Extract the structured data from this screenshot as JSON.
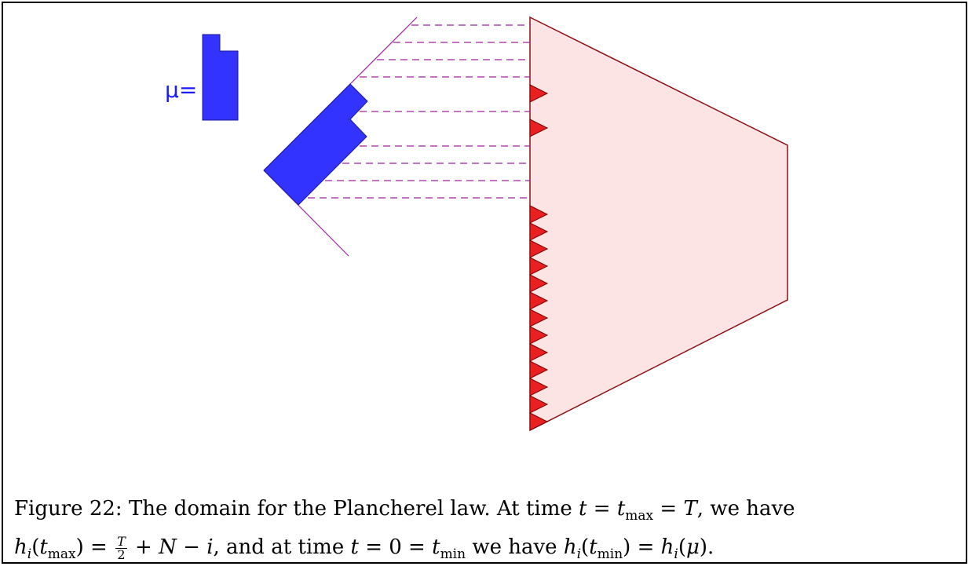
{
  "figure": {
    "mu_label": "μ=",
    "colors": {
      "domain_fill": "#fde4e4",
      "domain_stroke": "#8b1010",
      "triangle": "#e82020",
      "young_diagram": "#3333ff",
      "guide_lines": "#a020a0"
    }
  },
  "caption": {
    "figure_label": "Figure 22:",
    "text_1": "The domain for the Plancherel law. At time",
    "text_2": "we have",
    "text_3": ", and at time",
    "text_4": "we have",
    "end": "."
  }
}
